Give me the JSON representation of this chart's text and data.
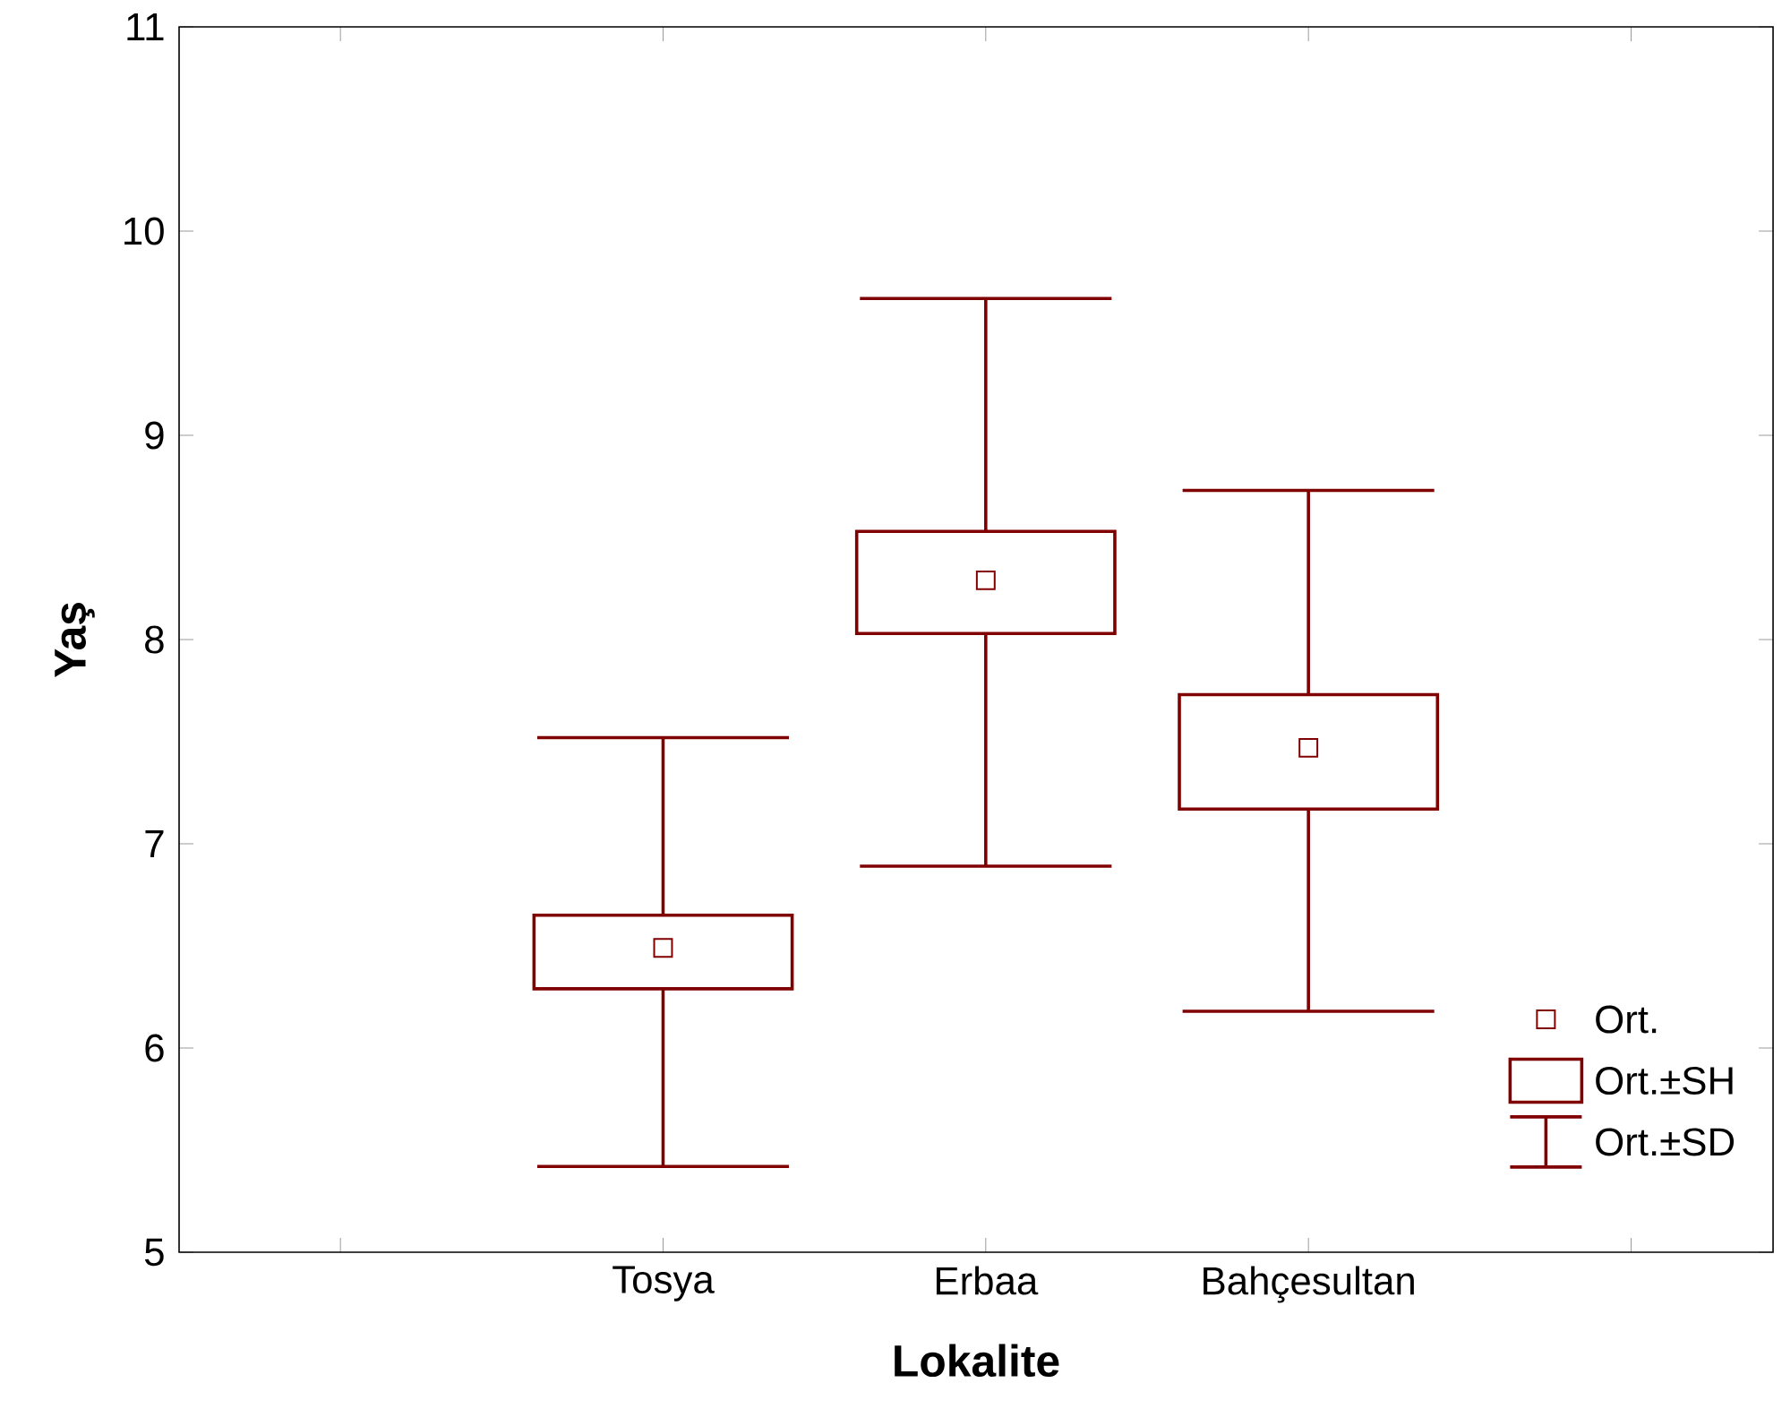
{
  "chart_data": {
    "type": "box",
    "xlabel": "Lokalite",
    "ylabel": "Yaş",
    "categories": [
      "Tosya",
      "Erbaa",
      "Bahçesultan"
    ],
    "boxes": [
      {
        "low": 5.42,
        "q1": 6.29,
        "median": 6.49,
        "q3": 6.65,
        "high": 7.52
      },
      {
        "low": 6.89,
        "q1": 8.03,
        "median": 8.29,
        "q3": 8.53,
        "high": 9.67
      },
      {
        "low": 6.18,
        "q1": 7.17,
        "median": 7.47,
        "q3": 7.73,
        "high": 8.73
      }
    ],
    "color": "#800000",
    "marker": "square",
    "ylim": [
      5,
      11
    ],
    "yticks": [
      5,
      6,
      7,
      8,
      9,
      10,
      11
    ],
    "annotations": [
      "Ort.",
      "Ort.±SH",
      "Ort.±SD"
    ]
  }
}
